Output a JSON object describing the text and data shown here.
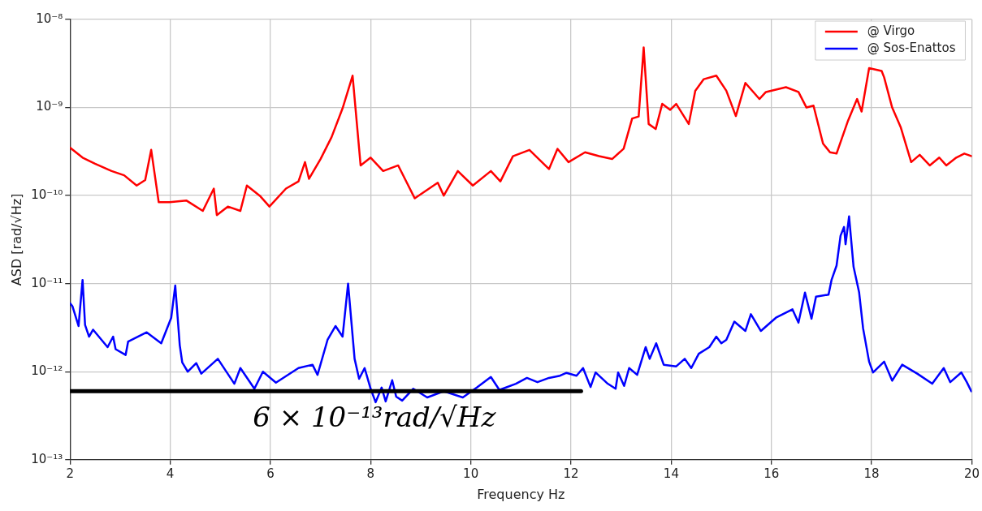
{
  "chart_data": {
    "type": "line",
    "xlabel": "Frequency Hz",
    "ylabel": "ASD [rad/√Hz]",
    "xlim": [
      2,
      20
    ],
    "xticks": [
      2,
      4,
      6,
      8,
      10,
      12,
      14,
      16,
      18,
      20
    ],
    "ylim": [
      1e-13,
      1e-08
    ],
    "yticks": [
      {
        "value": 1e-13,
        "label": "10⁻¹³"
      },
      {
        "value": 1e-12,
        "label": "10⁻¹²"
      },
      {
        "value": 1e-11,
        "label": "10⁻¹¹"
      },
      {
        "value": 1e-10,
        "label": "10⁻¹⁰"
      },
      {
        "value": 1e-09,
        "label": "10⁻⁹"
      },
      {
        "value": 1e-08,
        "label": "10⁻⁸"
      }
    ],
    "log": "y",
    "grid": true,
    "legend": "top right",
    "marker": "none",
    "line_style": "solid",
    "annotations": [
      {
        "text": "6 × 10⁻¹³rad/√Hz",
        "y": 6e-13
      }
    ],
    "series": [
      {
        "name": "@ Virgo",
        "color": "#ff0000",
        "x": [
          2.0,
          2.25,
          2.5,
          2.83,
          3.08,
          3.33,
          3.5,
          3.62,
          3.77,
          3.99,
          4.32,
          4.65,
          4.87,
          4.93,
          5.15,
          5.4,
          5.53,
          5.8,
          5.98,
          6.31,
          6.56,
          6.69,
          6.77,
          7.0,
          7.22,
          7.44,
          7.64,
          7.8,
          8.0,
          8.25,
          8.55,
          8.88,
          9.34,
          9.46,
          9.74,
          10.04,
          10.4,
          10.59,
          10.84,
          11.17,
          11.56,
          11.73,
          11.95,
          12.28,
          12.56,
          12.82,
          13.05,
          13.22,
          13.35,
          13.45,
          13.55,
          13.69,
          13.82,
          13.98,
          14.1,
          14.35,
          14.48,
          14.65,
          14.9,
          15.1,
          15.29,
          15.48,
          15.76,
          15.89,
          16.29,
          16.54,
          16.7,
          16.84,
          17.03,
          17.17,
          17.3,
          17.53,
          17.71,
          17.8,
          17.95,
          18.2,
          18.25,
          18.41,
          18.58,
          18.79,
          18.96,
          19.16,
          19.35,
          19.49,
          19.69,
          19.85,
          20.0
        ],
        "values": [
          3.5e-10,
          2.7e-10,
          2.3e-10,
          1.9e-10,
          1.7e-10,
          1.3e-10,
          1.5e-10,
          3.3e-10,
          8.4e-11,
          8.4e-11,
          8.8e-11,
          6.7e-11,
          1.2e-10,
          6e-11,
          7.5e-11,
          6.7e-11,
          1.3e-10,
          9.8e-11,
          7.5e-11,
          1.2e-10,
          1.45e-10,
          2.4e-10,
          1.55e-10,
          2.6e-10,
          4.6e-10,
          9.8e-10,
          2.3e-09,
          2.2e-10,
          2.7e-10,
          1.9e-10,
          2.2e-10,
          9.3e-11,
          1.4e-10,
          1e-10,
          1.9e-10,
          1.3e-10,
          1.9e-10,
          1.45e-10,
          2.8e-10,
          3.3e-10,
          2e-10,
          3.4e-10,
          2.4e-10,
          3.1e-10,
          2.8e-10,
          2.6e-10,
          3.4e-10,
          7.5e-10,
          7.9e-10,
          4.8e-09,
          6.5e-10,
          5.7e-10,
          1.1e-09,
          9.4e-10,
          1.1e-09,
          6.5e-10,
          1.55e-09,
          2.1e-09,
          2.3e-09,
          1.55e-09,
          8e-10,
          1.9e-09,
          1.25e-09,
          1.5e-09,
          1.7e-09,
          1.5e-09,
          1e-09,
          1.05e-09,
          3.9e-10,
          3.1e-10,
          3e-10,
          7.1e-10,
          1.25e-09,
          9e-10,
          2.8e-09,
          2.6e-09,
          2.2e-09,
          1e-09,
          6e-10,
          2.4e-10,
          2.9e-10,
          2.2e-10,
          2.7e-10,
          2.2e-10,
          2.7e-10,
          3e-10,
          2.8e-10
        ]
      },
      {
        "name": "@ Sos-Enattos",
        "color": "#0000ff",
        "x": [
          2.0,
          2.05,
          2.17,
          2.25,
          2.3,
          2.38,
          2.46,
          2.75,
          2.86,
          2.91,
          3.11,
          3.16,
          3.53,
          3.82,
          4.02,
          4.1,
          4.19,
          4.24,
          4.35,
          4.52,
          4.62,
          4.95,
          5.28,
          5.4,
          5.68,
          5.85,
          6.11,
          6.56,
          6.84,
          6.94,
          7.14,
          7.3,
          7.44,
          7.55,
          7.68,
          7.77,
          7.88,
          8.0,
          8.1,
          8.22,
          8.3,
          8.43,
          8.51,
          8.63,
          8.85,
          9.13,
          9.46,
          9.84,
          10.12,
          10.4,
          10.57,
          10.9,
          11.12,
          11.33,
          11.56,
          11.78,
          11.91,
          12.11,
          12.24,
          12.39,
          12.49,
          12.72,
          12.89,
          12.94,
          13.06,
          13.16,
          13.32,
          13.49,
          13.57,
          13.7,
          13.85,
          14.1,
          14.27,
          14.4,
          14.55,
          14.76,
          14.9,
          15.0,
          15.1,
          15.26,
          15.48,
          15.59,
          15.79,
          16.09,
          16.42,
          16.54,
          16.67,
          16.8,
          16.89,
          17.14,
          17.2,
          17.3,
          17.38,
          17.45,
          17.48,
          17.55,
          17.64,
          17.75,
          17.83,
          17.95,
          18.03,
          18.25,
          18.41,
          18.61,
          18.91,
          19.21,
          19.44,
          19.57,
          19.79,
          19.9,
          19.99
        ],
        "values": [
          6e-12,
          5.5e-12,
          3.3e-12,
          1.1e-11,
          3.4e-12,
          2.5e-12,
          3e-12,
          1.9e-12,
          2.5e-12,
          1.8e-12,
          1.55e-12,
          2.2e-12,
          2.8e-12,
          2.1e-12,
          4.1e-12,
          9.5e-12,
          2e-12,
          1.27e-12,
          1e-12,
          1.25e-12,
          9.5e-13,
          1.4e-12,
          7.3e-13,
          1.1e-12,
          6.4e-13,
          1e-12,
          7.5e-13,
          1.1e-12,
          1.2e-12,
          9.2e-13,
          2.3e-12,
          3.3e-12,
          2.5e-12,
          1e-11,
          1.4e-12,
          8.3e-13,
          1.1e-12,
          6.4e-13,
          4.5e-13,
          6.6e-13,
          4.6e-13,
          8e-13,
          5.2e-13,
          4.7e-13,
          6.4e-13,
          5.1e-13,
          6e-13,
          5.1e-13,
          6.6e-13,
          8.7e-13,
          6.2e-13,
          7.3e-13,
          8.5e-13,
          7.6e-13,
          8.5e-13,
          9e-13,
          9.7e-13,
          9e-13,
          1.1e-12,
          6.7e-13,
          9.8e-13,
          7.4e-13,
          6.4e-13,
          9.8e-13,
          6.9e-13,
          1.1e-12,
          9.2e-13,
          1.9e-12,
          1.4e-12,
          2.1e-12,
          1.2e-12,
          1.15e-12,
          1.4e-12,
          1.1e-12,
          1.6e-12,
          1.9e-12,
          2.5e-12,
          2.1e-12,
          2.3e-12,
          3.7e-12,
          2.9e-12,
          4.5e-12,
          2.9e-12,
          4.1e-12,
          5.1e-12,
          3.6e-12,
          7.9e-12,
          4e-12,
          7.1e-12,
          7.5e-12,
          1.1e-11,
          1.6e-11,
          3.5e-11,
          4.4e-11,
          2.8e-11,
          5.8e-11,
          1.55e-11,
          8e-12,
          3.1e-12,
          1.3e-12,
          9.8e-13,
          1.3e-12,
          7.9e-13,
          1.2e-12,
          9.5e-13,
          7.3e-13,
          1.1e-12,
          7.6e-13,
          9.8e-13,
          7.6e-13,
          6e-13
        ]
      },
      {
        "color": "#000000",
        "x": [
          2,
          12.2
        ],
        "values": [
          6e-13,
          6e-13
        ]
      }
    ]
  }
}
